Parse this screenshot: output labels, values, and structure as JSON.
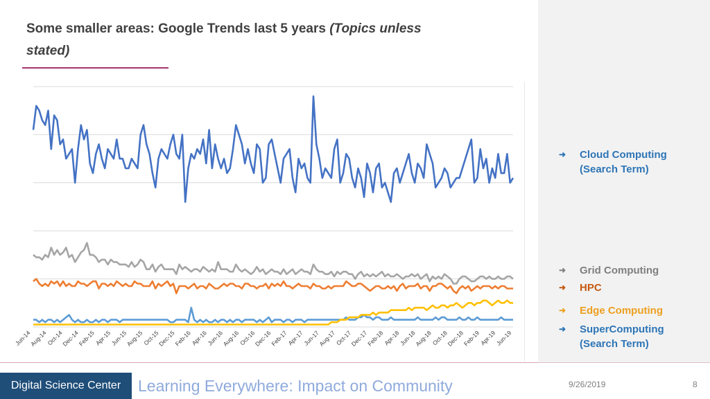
{
  "slide": {
    "title_main": "Some smaller areas: Google Trends last 5 years ",
    "title_italic": "(Topics unless stated)",
    "footer_org": "Digital Science Center",
    "footer_title": "Learning Everywhere: Impact on Community",
    "date": "9/26/2019",
    "page_number": "8"
  },
  "legend": {
    "arrow": "➜",
    "cloud_line1": "Cloud Computing",
    "cloud_line2": "(Search Term)",
    "grid": "Grid Computing",
    "hpc": "HPC",
    "edge": "Edge Computing",
    "super_line1": "SuperComputing",
    "super_line2": "(Search Term)"
  },
  "colors": {
    "cloud": "#4472c4",
    "grid": "#a5a5a5",
    "hpc": "#ed7d31",
    "edge": "#ffc000",
    "supercomputing": "#5b9bd5",
    "grid_legend_text": "#7f7f7f",
    "hpc_legend_text": "#c55a11",
    "edge_legend_text": "#ed9f1f",
    "blue_legend_text": "#2e75b6"
  },
  "chart_data": {
    "type": "line",
    "title": "",
    "xlabel": "",
    "ylabel": "",
    "ylim": [
      0,
      100
    ],
    "grid": "horizontal",
    "x_ticks": [
      "Jun-14",
      "Aug-14",
      "Oct-14",
      "Dec-14",
      "Feb-15",
      "Apr-15",
      "Jun-15",
      "Aug-15",
      "Oct-15",
      "Dec-15",
      "Feb-16",
      "Apr-16",
      "Jun-16",
      "Aug-16",
      "Oct-16",
      "Dec-16",
      "Feb-17",
      "Apr-17",
      "Jun-17",
      "Aug-17",
      "Oct-17",
      "Dec-17",
      "Feb-18",
      "Apr-18",
      "Jun-18",
      "Aug-18",
      "Oct-18",
      "Dec-18",
      "Feb-19",
      "Apr-19",
      "Jun-19"
    ],
    "series": [
      {
        "name": "Cloud Computing (Search Term)",
        "key": "cloud",
        "values": [
          82,
          92,
          90,
          86,
          84,
          90,
          74,
          88,
          86,
          76,
          78,
          70,
          72,
          74,
          60,
          74,
          84,
          78,
          82,
          68,
          64,
          72,
          76,
          70,
          66,
          74,
          72,
          70,
          78,
          70,
          70,
          66,
          66,
          70,
          68,
          66,
          80,
          84,
          76,
          72,
          64,
          58,
          70,
          74,
          72,
          70,
          76,
          80,
          72,
          70,
          80,
          52,
          66,
          72,
          70,
          74,
          72,
          78,
          68,
          82,
          66,
          76,
          70,
          66,
          70,
          64,
          66,
          74,
          84,
          80,
          76,
          68,
          74,
          68,
          64,
          76,
          74,
          60,
          62,
          76,
          78,
          72,
          66,
          60,
          70,
          72,
          74,
          62,
          56,
          70,
          66,
          68,
          62,
          60,
          96,
          76,
          70,
          62,
          66,
          64,
          62,
          74,
          78,
          60,
          64,
          72,
          70,
          62,
          58,
          66,
          62,
          54,
          68,
          64,
          56,
          66,
          68,
          58,
          60,
          56,
          52,
          64,
          66,
          60,
          64,
          68,
          72,
          64,
          60,
          68,
          66,
          62,
          76,
          72,
          68,
          58,
          60,
          62,
          66,
          64,
          58,
          60,
          62,
          62,
          66,
          70,
          74,
          78,
          60,
          62,
          74,
          66,
          70,
          60,
          66,
          62,
          72,
          64,
          64,
          72,
          60,
          62
        ]
      },
      {
        "name": "Grid Computing",
        "key": "grid",
        "values": [
          30,
          29,
          29,
          28,
          30,
          29,
          33,
          30,
          32,
          30,
          31,
          33,
          29,
          30,
          27,
          29,
          31,
          32,
          35,
          30,
          30,
          29,
          27,
          28,
          28,
          26,
          28,
          27,
          27,
          26,
          26,
          26,
          25,
          27,
          25,
          26,
          28,
          27,
          24,
          24,
          26,
          23,
          25,
          26,
          24,
          24,
          24,
          24,
          22,
          26,
          24,
          25,
          24,
          23,
          24,
          24,
          23,
          25,
          24,
          23,
          24,
          23,
          27,
          24,
          24,
          24,
          23,
          23,
          26,
          24,
          23,
          24,
          23,
          22,
          23,
          25,
          23,
          24,
          22,
          23,
          24,
          23,
          23,
          22,
          24,
          22,
          23,
          24,
          22,
          23,
          24,
          23,
          23,
          22,
          26,
          24,
          23,
          23,
          22,
          22,
          23,
          21,
          23,
          22,
          23,
          23,
          22,
          22,
          20,
          22,
          23,
          21,
          22,
          21,
          22,
          21,
          22,
          23,
          21,
          22,
          21,
          21,
          22,
          21,
          20,
          21,
          21,
          22,
          21,
          22,
          20,
          21,
          22,
          19,
          21,
          20,
          21,
          20,
          22,
          21,
          20,
          18,
          18,
          20,
          21,
          21,
          20,
          19,
          19,
          20,
          21,
          21,
          20,
          21,
          20,
          20,
          21,
          20,
          20,
          21,
          21,
          20
        ]
      },
      {
        "name": "HPC",
        "key": "hpc",
        "values": [
          19,
          20,
          18,
          17,
          18,
          17,
          19,
          18,
          19,
          17,
          19,
          17,
          18,
          17,
          17,
          19,
          18,
          18,
          17,
          18,
          19,
          19,
          16,
          18,
          18,
          17,
          18,
          17,
          19,
          18,
          17,
          18,
          17,
          17,
          19,
          18,
          18,
          17,
          17,
          17,
          19,
          16,
          18,
          17,
          18,
          19,
          17,
          18,
          14,
          17,
          17,
          17,
          16,
          17,
          18,
          16,
          17,
          17,
          16,
          18,
          17,
          16,
          16,
          17,
          18,
          17,
          18,
          18,
          17,
          17,
          16,
          18,
          18,
          17,
          17,
          16,
          17,
          17,
          18,
          16,
          18,
          17,
          18,
          17,
          19,
          17,
          17,
          16,
          17,
          18,
          17,
          17,
          17,
          16,
          18,
          17,
          17,
          16,
          16,
          17,
          16,
          17,
          17,
          17,
          17,
          19,
          18,
          17,
          17,
          18,
          18,
          17,
          16,
          15,
          16,
          17,
          17,
          16,
          16,
          17,
          16,
          17,
          15,
          17,
          18,
          16,
          17,
          17,
          17,
          18,
          16,
          17,
          17,
          15,
          17,
          17,
          18,
          18,
          17,
          16,
          17,
          15,
          14,
          16,
          17,
          16,
          17,
          15,
          16,
          17,
          16,
          17,
          17,
          17,
          16,
          17,
          16,
          17,
          17,
          16,
          16,
          16
        ]
      },
      {
        "name": "Edge Computing",
        "key": "edge",
        "values": [
          1,
          1,
          1,
          1,
          1,
          1,
          1,
          1,
          1,
          1,
          1,
          1,
          1,
          1,
          1,
          1,
          1,
          1,
          1,
          1,
          1,
          1,
          1,
          1,
          1,
          1,
          1,
          1,
          1,
          1,
          1,
          1,
          1,
          1,
          1,
          1,
          1,
          1,
          1,
          1,
          1,
          1,
          1,
          1,
          1,
          1,
          1,
          1,
          1,
          1,
          1,
          1,
          1,
          1,
          1,
          1,
          1,
          1,
          1,
          1,
          1,
          1,
          1,
          1,
          1,
          1,
          1,
          1,
          1,
          1,
          1,
          1,
          1,
          1,
          1,
          1,
          1,
          1,
          1,
          1,
          1,
          1,
          1,
          1,
          1,
          1,
          1,
          1,
          1,
          1,
          1,
          1,
          1,
          1,
          1,
          1,
          1,
          1,
          1,
          1,
          2,
          2,
          2,
          3,
          3,
          3,
          4,
          4,
          4,
          4,
          5,
          5,
          5,
          5,
          6,
          5,
          6,
          6,
          6,
          6,
          7,
          7,
          7,
          7,
          7,
          7,
          8,
          7,
          8,
          8,
          8,
          8,
          7,
          8,
          9,
          8,
          8,
          9,
          9,
          8,
          9,
          9,
          10,
          9,
          8,
          9,
          10,
          10,
          9,
          10,
          10,
          11,
          11,
          10,
          9,
          10,
          11,
          10,
          10,
          11,
          10,
          10
        ]
      },
      {
        "name": "SuperComputing (Search Term)",
        "key": "supercomputing",
        "values": [
          3,
          3,
          2,
          3,
          2,
          3,
          3,
          2,
          3,
          2,
          3,
          4,
          5,
          3,
          2,
          3,
          2,
          2,
          3,
          2,
          2,
          3,
          2,
          3,
          3,
          2,
          3,
          3,
          3,
          2,
          3,
          3,
          3,
          3,
          3,
          3,
          3,
          3,
          3,
          3,
          3,
          3,
          3,
          3,
          3,
          3,
          2,
          2,
          3,
          3,
          3,
          3,
          2,
          8,
          3,
          2,
          3,
          2,
          3,
          2,
          2,
          3,
          2,
          3,
          3,
          2,
          3,
          2,
          3,
          3,
          2,
          3,
          3,
          3,
          3,
          2,
          3,
          2,
          3,
          4,
          2,
          3,
          3,
          3,
          2,
          3,
          3,
          2,
          3,
          3,
          3,
          2,
          3,
          3,
          3,
          3,
          3,
          3,
          3,
          3,
          3,
          3,
          3,
          3,
          3,
          4,
          3,
          3,
          3,
          4,
          4,
          5,
          4,
          4,
          3,
          4,
          4,
          3,
          3,
          3,
          4,
          3,
          3,
          3,
          3,
          3,
          3,
          3,
          3,
          4,
          3,
          3,
          3,
          3,
          3,
          4,
          3,
          4,
          4,
          3,
          3,
          3,
          3,
          4,
          3,
          3,
          4,
          3,
          3,
          4,
          3,
          3,
          3,
          3,
          3,
          3,
          3,
          4,
          3,
          3,
          3,
          3
        ]
      }
    ]
  }
}
